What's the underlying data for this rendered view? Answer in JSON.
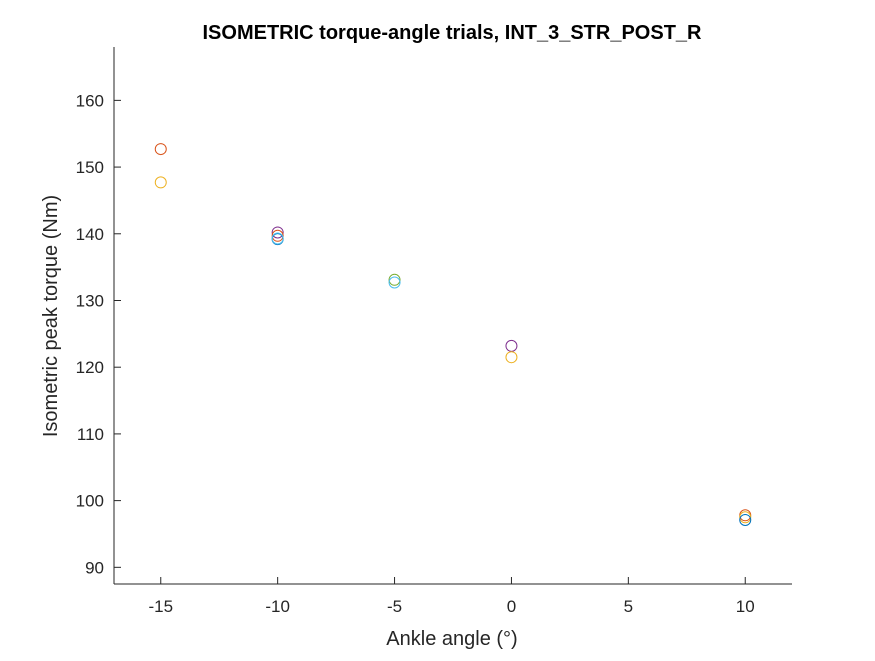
{
  "chart_data": {
    "type": "scatter",
    "title": "ISOMETRIC torque-angle trials, INT_3_STR_POST_R",
    "xlabel": "Ankle angle (°)",
    "ylabel": "Isometric peak torque (Nm)",
    "xlim": [
      -17,
      12
    ],
    "ylim": [
      87.5,
      168
    ],
    "xticks": [
      -15,
      -10,
      -5,
      0,
      5,
      10
    ],
    "yticks": [
      90,
      100,
      110,
      120,
      130,
      140,
      150,
      160
    ],
    "grid": false,
    "legend": "none",
    "marker": "open-circle",
    "points": [
      {
        "x": -15,
        "y": 152.7,
        "color": "#D95319"
      },
      {
        "x": -15,
        "y": 147.7,
        "color": "#EDB120"
      },
      {
        "x": -10,
        "y": 140.2,
        "color": "#7E2F8E"
      },
      {
        "x": -10,
        "y": 139.7,
        "color": "#D95319"
      },
      {
        "x": -10,
        "y": 139.2,
        "color": "#0072BD"
      },
      {
        "x": -10,
        "y": 139.3,
        "color": "#4DBEEE"
      },
      {
        "x": -5,
        "y": 133.1,
        "color": "#77AC30"
      },
      {
        "x": -5,
        "y": 132.7,
        "color": "#4DBEEE"
      },
      {
        "x": 0,
        "y": 123.2,
        "color": "#7E2F8E"
      },
      {
        "x": 0,
        "y": 121.5,
        "color": "#EDB120"
      },
      {
        "x": 10,
        "y": 97.8,
        "color": "#D95319"
      },
      {
        "x": 10,
        "y": 97.5,
        "color": "#EDB120"
      },
      {
        "x": 10,
        "y": 97.1,
        "color": "#0072BD"
      }
    ]
  }
}
